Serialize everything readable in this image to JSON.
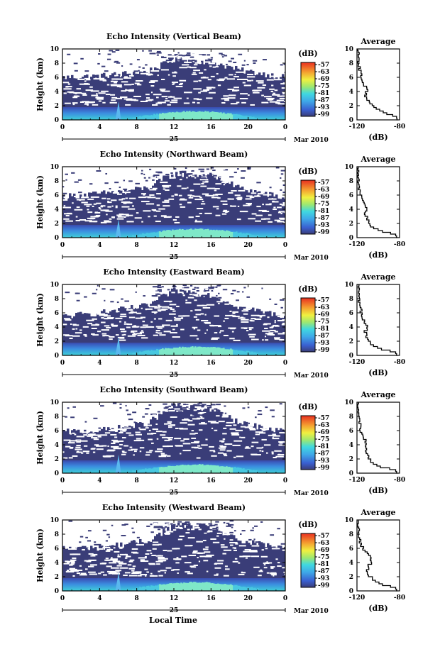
{
  "chart_data": {
    "type": "heatmap",
    "xlabel": "Local Time",
    "shared": {
      "x_ticks": [
        "0",
        "4",
        "8",
        "12",
        "16",
        "20",
        "0"
      ],
      "xlim": [
        0,
        24
      ],
      "date_day": "25",
      "date_month_year": "Mar 2010",
      "ylabel": "Height (km)",
      "y_ticks": [
        "0",
        "2",
        "4",
        "6",
        "8",
        "10"
      ],
      "ylim": [
        0,
        10
      ],
      "colorbar_unit": "(dB)",
      "colorbar_ticks": [
        "-57",
        "-63",
        "-69",
        "-75",
        "-81",
        "-87",
        "-93",
        "-99"
      ],
      "clim": [
        -99,
        -57
      ],
      "profile_title": "Average",
      "profile_x_ticks": [
        "-120",
        "-80"
      ],
      "profile_xlim": [
        -120,
        -80
      ],
      "profile_xlabel": "(dB)"
    },
    "panels": [
      {
        "title": "Echo Intensity (Vertical Beam)",
        "echo_top_km": [
          {
            "t": 0,
            "h": 6.0
          },
          {
            "t": 4,
            "h": 6.2
          },
          {
            "t": 9,
            "h": 6.8
          },
          {
            "t": 12,
            "h": 8.5
          },
          {
            "t": 16,
            "h": 8.2
          },
          {
            "t": 19,
            "h": 7.0
          },
          {
            "t": 24,
            "h": 6.0
          }
        ],
        "avg_profile": [
          {
            "h": 0,
            "db": -82
          },
          {
            "h": 0.6,
            "db": -83
          },
          {
            "h": 1.0,
            "db": -92
          },
          {
            "h": 1.6,
            "db": -100
          },
          {
            "h": 2.5,
            "db": -108
          },
          {
            "h": 3.5,
            "db": -112
          },
          {
            "h": 4.4,
            "db": -110
          },
          {
            "h": 5.2,
            "db": -114
          },
          {
            "h": 6.0,
            "db": -116
          },
          {
            "h": 7.0,
            "db": -117
          },
          {
            "h": 8.0,
            "db": -118
          },
          {
            "h": 9.0,
            "db": -119
          },
          {
            "h": 10.0,
            "db": -119
          }
        ]
      },
      {
        "title": "Echo Intensity (Northward Beam)",
        "echo_top_km": [
          {
            "t": 0,
            "h": 5.8
          },
          {
            "t": 4,
            "h": 6.2
          },
          {
            "t": 9,
            "h": 7.0
          },
          {
            "t": 12,
            "h": 9.0
          },
          {
            "t": 16,
            "h": 8.7
          },
          {
            "t": 19,
            "h": 7.0
          },
          {
            "t": 24,
            "h": 5.5
          }
        ],
        "avg_profile": [
          {
            "h": 0,
            "db": -82
          },
          {
            "h": 0.6,
            "db": -84
          },
          {
            "h": 1.0,
            "db": -96
          },
          {
            "h": 1.6,
            "db": -106
          },
          {
            "h": 2.5,
            "db": -110
          },
          {
            "h": 3.5,
            "db": -112
          },
          {
            "h": 4.3,
            "db": -111
          },
          {
            "h": 5.2,
            "db": -114
          },
          {
            "h": 6.0,
            "db": -116
          },
          {
            "h": 7.0,
            "db": -118
          },
          {
            "h": 8.0,
            "db": -119
          },
          {
            "h": 9.0,
            "db": -119
          },
          {
            "h": 10.0,
            "db": -120
          }
        ]
      },
      {
        "title": "Echo Intensity (Eastward Beam)",
        "echo_top_km": [
          {
            "t": 0,
            "h": 5.5
          },
          {
            "t": 4,
            "h": 6.0
          },
          {
            "t": 9,
            "h": 7.0
          },
          {
            "t": 12,
            "h": 9.2
          },
          {
            "t": 16,
            "h": 8.5
          },
          {
            "t": 19,
            "h": 6.8
          },
          {
            "t": 24,
            "h": 5.5
          }
        ],
        "avg_profile": [
          {
            "h": 0,
            "db": -82
          },
          {
            "h": 0.6,
            "db": -84
          },
          {
            "h": 1.0,
            "db": -97
          },
          {
            "h": 1.6,
            "db": -106
          },
          {
            "h": 2.5,
            "db": -110
          },
          {
            "h": 3.5,
            "db": -112
          },
          {
            "h": 4.3,
            "db": -110
          },
          {
            "h": 5.2,
            "db": -115
          },
          {
            "h": 6.0,
            "db": -116
          },
          {
            "h": 7.0,
            "db": -117
          },
          {
            "h": 8.0,
            "db": -118
          },
          {
            "h": 9.0,
            "db": -119
          },
          {
            "h": 10.0,
            "db": -119
          }
        ]
      },
      {
        "title": "Echo Intensity (Southward Beam)",
        "echo_top_km": [
          {
            "t": 0,
            "h": 5.8
          },
          {
            "t": 4,
            "h": 6.0
          },
          {
            "t": 9,
            "h": 7.0
          },
          {
            "t": 12,
            "h": 9.5
          },
          {
            "t": 16,
            "h": 9.0
          },
          {
            "t": 19,
            "h": 7.0
          },
          {
            "t": 24,
            "h": 5.8
          }
        ],
        "avg_profile": [
          {
            "h": 0,
            "db": -82
          },
          {
            "h": 0.6,
            "db": -84
          },
          {
            "h": 1.0,
            "db": -98
          },
          {
            "h": 1.6,
            "db": -106
          },
          {
            "h": 2.5,
            "db": -110
          },
          {
            "h": 3.5,
            "db": -112
          },
          {
            "h": 4.3,
            "db": -111
          },
          {
            "h": 5.2,
            "db": -114
          },
          {
            "h": 6.0,
            "db": -116
          },
          {
            "h": 7.0,
            "db": -117
          },
          {
            "h": 8.0,
            "db": -118
          },
          {
            "h": 9.0,
            "db": -119
          },
          {
            "h": 10.0,
            "db": -119
          }
        ]
      },
      {
        "title": "Echo Intensity (Westward Beam)",
        "echo_top_km": [
          {
            "t": 0,
            "h": 6.0
          },
          {
            "t": 4,
            "h": 6.2
          },
          {
            "t": 9,
            "h": 7.0
          },
          {
            "t": 12,
            "h": 9.3
          },
          {
            "t": 16,
            "h": 9.0
          },
          {
            "t": 19,
            "h": 7.0
          },
          {
            "t": 24,
            "h": 6.0
          }
        ],
        "avg_profile": [
          {
            "h": 0,
            "db": -82
          },
          {
            "h": 0.6,
            "db": -84
          },
          {
            "h": 1.0,
            "db": -96
          },
          {
            "h": 1.6,
            "db": -104
          },
          {
            "h": 2.5,
            "db": -110
          },
          {
            "h": 3.5,
            "db": -110
          },
          {
            "h": 4.3,
            "db": -106
          },
          {
            "h": 5.1,
            "db": -108
          },
          {
            "h": 6.0,
            "db": -114
          },
          {
            "h": 7.0,
            "db": -117
          },
          {
            "h": 8.0,
            "db": -118
          },
          {
            "h": 9.0,
            "db": -119
          },
          {
            "h": 10.0,
            "db": -119
          }
        ]
      }
    ]
  }
}
